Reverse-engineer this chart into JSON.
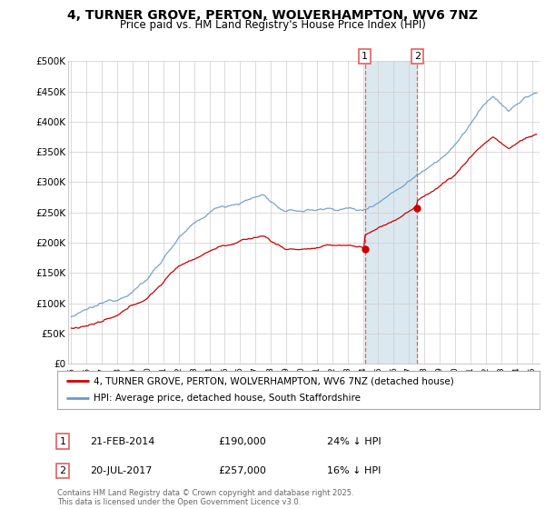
{
  "title": "4, TURNER GROVE, PERTON, WOLVERHAMPTON, WV6 7NZ",
  "subtitle": "Price paid vs. HM Land Registry's House Price Index (HPI)",
  "ylabel_ticks": [
    "£0",
    "£50K",
    "£100K",
    "£150K",
    "£200K",
    "£250K",
    "£300K",
    "£350K",
    "£400K",
    "£450K",
    "£500K"
  ],
  "ytick_values": [
    0,
    50000,
    100000,
    150000,
    200000,
    250000,
    300000,
    350000,
    400000,
    450000,
    500000
  ],
  "xlim_start": 1994.8,
  "xlim_end": 2025.5,
  "ylim": [
    0,
    500000
  ],
  "sale1_x": 2014.12,
  "sale1_y": 190000,
  "sale1_label": "1",
  "sale2_x": 2017.54,
  "sale2_y": 257000,
  "sale2_label": "2",
  "legend_red": "4, TURNER GROVE, PERTON, WOLVERHAMPTON, WV6 7NZ (detached house)",
  "legend_blue": "HPI: Average price, detached house, South Staffordshire",
  "footer": "Contains HM Land Registry data © Crown copyright and database right 2025.\nThis data is licensed under the Open Government Licence v3.0.",
  "red_color": "#cc0000",
  "blue_color": "#6699cc",
  "shade_color": "#dce8f0",
  "vline_color": "#e06060",
  "background_color": "#ffffff",
  "grid_color": "#cccccc"
}
